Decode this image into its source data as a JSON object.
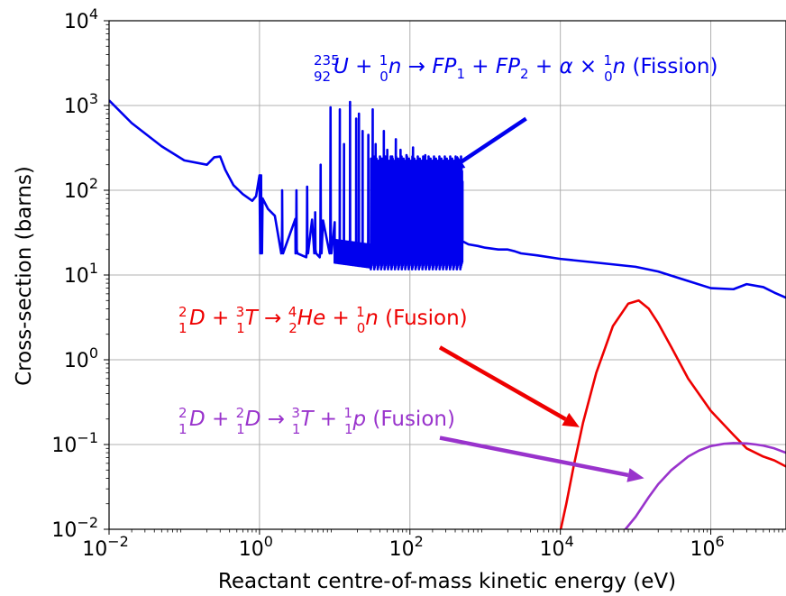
{
  "chart_data": {
    "type": "line",
    "title": "",
    "xlabel": "Reactant centre-of-mass kinetic energy (eV)",
    "ylabel": "Cross-section (barns)",
    "xscale": "log",
    "yscale": "log",
    "xlim": [
      0.01,
      10000000
    ],
    "ylim": [
      0.01,
      10000
    ],
    "grid": true,
    "x_ticks": [
      {
        "base": "10",
        "exp": "−2"
      },
      {
        "base": "10",
        "exp": "0"
      },
      {
        "base": "10",
        "exp": "2"
      },
      {
        "base": "10",
        "exp": "4"
      },
      {
        "base": "10",
        "exp": "6"
      }
    ],
    "y_ticks": [
      {
        "base": "10",
        "exp": "−2"
      },
      {
        "base": "10",
        "exp": "−1"
      },
      {
        "base": "10",
        "exp": "0"
      },
      {
        "base": "10",
        "exp": "1"
      },
      {
        "base": "10",
        "exp": "2"
      },
      {
        "base": "10",
        "exp": "3"
      },
      {
        "base": "10",
        "exp": "4"
      }
    ],
    "series": [
      {
        "color": "#0000ee",
        "resonance_region": [
          10,
          500
        ],
        "resonance_band": [
          13,
          250
        ],
        "x": [
          0.01,
          0.02,
          0.05,
          0.1,
          0.2,
          0.25,
          0.3,
          0.35,
          0.45,
          0.6,
          0.8,
          0.9,
          1.0,
          1.1,
          1.3,
          1.6,
          2.0,
          3.0,
          5.0,
          7.0,
          10,
          500,
          600,
          800,
          1000,
          1500,
          2000,
          2500,
          3000,
          5000,
          10000,
          30000,
          100000,
          200000,
          500000,
          1000000,
          2000000,
          3000000,
          5000000,
          7000000,
          10000000
        ],
        "y": [
          1150,
          620,
          330,
          225,
          200,
          245,
          250,
          175,
          115,
          90,
          75,
          85,
          150,
          80,
          60,
          50,
          48,
          46,
          45,
          44,
          42,
          25,
          23,
          22,
          21,
          20,
          20,
          19,
          18,
          17,
          15.5,
          14,
          12.5,
          11,
          8.5,
          7,
          6.8,
          7.8,
          7.2,
          6.2,
          5.4
        ],
        "peaks": [
          {
            "x": 1.05,
            "y": 150
          },
          {
            "x": 2.0,
            "y": 100
          },
          {
            "x": 3.1,
            "y": 100
          },
          {
            "x": 4.3,
            "y": 110
          },
          {
            "x": 5.5,
            "y": 55
          },
          {
            "x": 6.5,
            "y": 200
          },
          {
            "x": 8.8,
            "y": 950
          },
          {
            "x": 11.7,
            "y": 900
          },
          {
            "x": 13.3,
            "y": 350
          },
          {
            "x": 16,
            "y": 1100
          },
          {
            "x": 19.3,
            "y": 700
          },
          {
            "x": 21,
            "y": 800
          },
          {
            "x": 23.5,
            "y": 500
          },
          {
            "x": 28,
            "y": 450
          },
          {
            "x": 32,
            "y": 900
          },
          {
            "x": 35,
            "y": 350
          },
          {
            "x": 40,
            "y": 250
          },
          {
            "x": 45,
            "y": 500
          },
          {
            "x": 50,
            "y": 300
          },
          {
            "x": 58,
            "y": 250
          },
          {
            "x": 65,
            "y": 400
          },
          {
            "x": 75,
            "y": 300
          },
          {
            "x": 90,
            "y": 260
          },
          {
            "x": 110,
            "y": 320
          },
          {
            "x": 130,
            "y": 220
          },
          {
            "x": 160,
            "y": 260
          },
          {
            "x": 200,
            "y": 200
          },
          {
            "x": 250,
            "y": 180
          },
          {
            "x": 300,
            "y": 160
          },
          {
            "x": 350,
            "y": 130
          },
          {
            "x": 420,
            "y": 110
          },
          {
            "x": 480,
            "y": 90
          }
        ]
      },
      {
        "color": "#ee0000",
        "x": [
          10000,
          12000,
          15000,
          20000,
          30000,
          50000,
          80000,
          110000,
          150000,
          200000,
          300000,
          500000,
          1000000,
          2000000,
          3000000,
          5000000,
          7000000,
          10000000
        ],
        "y": [
          0.008,
          0.02,
          0.055,
          0.18,
          0.7,
          2.5,
          4.6,
          5.0,
          4.0,
          2.7,
          1.4,
          0.6,
          0.25,
          0.13,
          0.09,
          0.072,
          0.065,
          0.055
        ]
      },
      {
        "color": "#9933cc",
        "x": [
          50000,
          70000,
          100000,
          150000,
          200000,
          300000,
          500000,
          700000,
          1000000,
          1500000,
          2000000,
          3000000,
          4000000,
          5000000,
          7000000,
          10000000
        ],
        "y": [
          0.004,
          0.008,
          0.014,
          0.024,
          0.034,
          0.05,
          0.072,
          0.085,
          0.096,
          0.102,
          0.104,
          0.103,
          0.1,
          0.097,
          0.09,
          0.08
        ]
      }
    ],
    "annotations": {
      "fission": {
        "color": "#0000ee",
        "reaction_label": "(Fission)",
        "arrow_from": [
          3500,
          700
        ],
        "arrow_to": [
          320,
          170
        ]
      },
      "dt_fusion": {
        "color": "#ee0000",
        "reaction_label": "(Fusion)",
        "arrow_from": [
          250,
          1.4
        ],
        "arrow_to": [
          18000,
          0.16
        ]
      },
      "dd_fusion": {
        "color": "#9933cc",
        "reaction_label": "(Fusion)",
        "arrow_from": [
          250,
          0.12
        ],
        "arrow_to": [
          130000,
          0.04
        ]
      }
    }
  }
}
